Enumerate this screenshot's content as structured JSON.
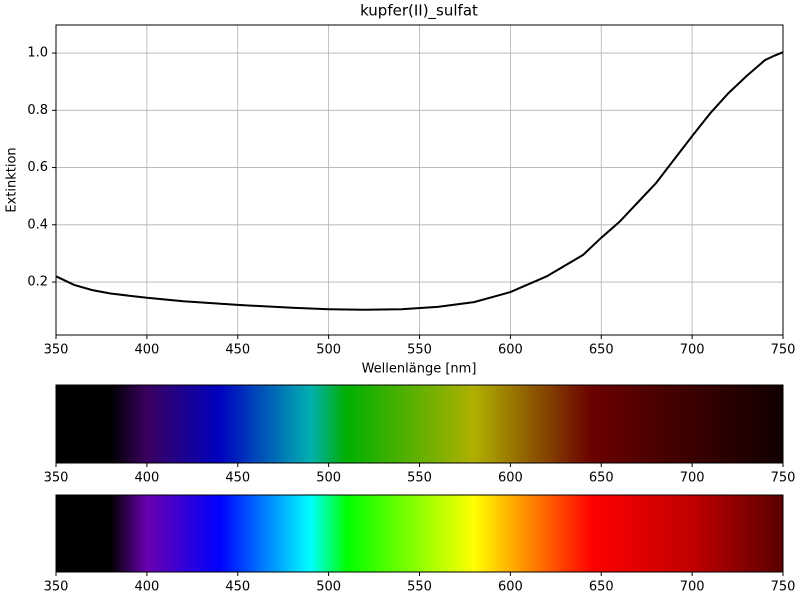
{
  "chart_data": [
    {
      "type": "line",
      "title": "kupfer(II)_sulfat",
      "x_label": "Wellenlänge [nm]",
      "y_label": "Extinktion",
      "x": [
        350,
        360,
        370,
        380,
        400,
        420,
        450,
        480,
        500,
        520,
        540,
        560,
        580,
        600,
        620,
        640,
        650,
        660,
        680,
        700,
        710,
        720,
        730,
        740,
        745,
        750
      ],
      "series": [
        {
          "name": "kupfer(II)_sulfat",
          "color": "#000000",
          "values": [
            0.22,
            0.19,
            0.172,
            0.16,
            0.145,
            0.133,
            0.12,
            0.11,
            0.105,
            0.103,
            0.105,
            0.113,
            0.13,
            0.165,
            0.22,
            0.295,
            0.355,
            0.41,
            0.545,
            0.71,
            0.79,
            0.86,
            0.92,
            0.975,
            0.99,
            1.003
          ]
        }
      ],
      "xlim": [
        350,
        750
      ],
      "xticks": [
        350,
        400,
        450,
        500,
        550,
        600,
        650,
        700,
        750
      ],
      "ylim": [
        0.015,
        1.098
      ],
      "yticks": [
        0.2,
        0.4,
        0.6,
        0.8,
        {
          "value": 1,
          "label": "1.0"
        }
      ],
      "grid": true
    },
    {
      "type": "spectrum",
      "x": [
        350,
        380,
        400,
        440,
        490,
        510,
        580,
        645,
        700,
        750
      ],
      "colors": [
        "#000000",
        "#000000",
        "#3a0060",
        "#0000c0",
        "#00b0b0",
        "#00b000",
        "#b0b000",
        "#6a0000",
        "#3a0000",
        "#100000"
      ],
      "xlim": [
        350,
        750
      ],
      "xticks": [
        350,
        400,
        450,
        500,
        550,
        600,
        650,
        700,
        750
      ]
    },
    {
      "type": "spectrum",
      "x": [
        350,
        380,
        400,
        440,
        490,
        510,
        580,
        645,
        700,
        750
      ],
      "colors": [
        "#000000",
        "#000000",
        "#6a00b0",
        "#0000ff",
        "#00ffff",
        "#00ff00",
        "#ffff00",
        "#ff0000",
        "#c00000",
        "#5a0000"
      ],
      "xlim": [
        350,
        750
      ],
      "xticks": [
        350,
        400,
        450,
        500,
        550,
        600,
        650,
        700,
        750
      ]
    }
  ]
}
